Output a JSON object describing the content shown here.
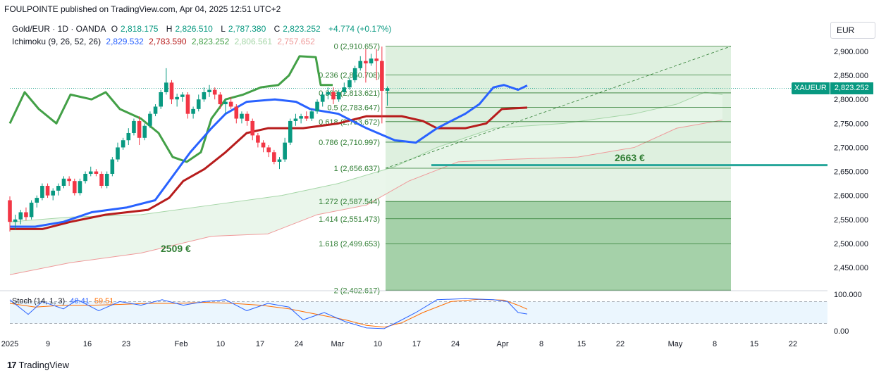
{
  "header": {
    "publisher": "FOULPOINTE published on TradingView.com, Apr 04, 2025 12:51 UTC+2"
  },
  "symbol": {
    "name": "Gold/EUR · 1D · OANDA",
    "o_label": "O",
    "o": "2,818.175",
    "h_label": "H",
    "h": "2,826.510",
    "l_label": "L",
    "l": "2,787.380",
    "c_label": "C",
    "c": "2,823.252",
    "change": "+4.774 (+0.17%)"
  },
  "ichimoku": {
    "label": "Ichimoku (9, 26, 52, 26)",
    "values": [
      "2,829.532",
      "2,783.590",
      "2,823.252",
      "2,806.561",
      "2,757.652"
    ],
    "colors": [
      "#2962ff",
      "#b71c1c",
      "#43a047",
      "#a5d6a7",
      "#ef9a9a"
    ]
  },
  "currency_button": "EUR",
  "price_tag": {
    "symbol": "XAUEUR",
    "value": "2,823.252"
  },
  "annotations": {
    "target_high": "2663 €",
    "target_low": "2509 €"
  },
  "stoch": {
    "label": "Stoch (14, 1, 3)",
    "k": "46.41",
    "d": "59.51",
    "k_color": "#2962ff",
    "d_color": "#ff6d00"
  },
  "branding": {
    "mark": "17",
    "name": "TradingView"
  },
  "colors": {
    "up": "#089981",
    "down": "#f23645",
    "tenkan": "#2962ff",
    "kijun": "#b71c1c",
    "chikou": "#43a047",
    "fib_line": "#2e7d32",
    "cloud": "#e8f5e9",
    "zone": "#c8e6c9",
    "zone_dark": "#8fc694"
  },
  "chart_data": {
    "type": "candlestick",
    "y_axis_ticks": [
      "2,900.000",
      "2,850.000",
      "2,800.000",
      "2,750.000",
      "2,700.000",
      "2,650.000",
      "2,600.000",
      "2,550.000",
      "2,500.000",
      "2,450.000"
    ],
    "y_axis_values": [
      2900,
      2850,
      2800,
      2750,
      2700,
      2650,
      2600,
      2550,
      2500,
      2450
    ],
    "ylim": [
      2414,
      2954
    ],
    "x_axis_ticks": [
      "2025",
      "9",
      "16",
      "23",
      "Feb",
      "10",
      "17",
      "24",
      "Mar",
      "10",
      "17",
      "24",
      "Apr",
      "8",
      "15",
      "22",
      "May",
      "8",
      "15",
      "22"
    ],
    "fib_levels": [
      {
        "label": "0 (2,910.657)",
        "value": 2910.657
      },
      {
        "label": "0.236 (2,850.708)",
        "value": 2850.708
      },
      {
        "label": "0.382 (2,813.621)",
        "value": 2813.621
      },
      {
        "label": "0.5 (2,783.647)",
        "value": 2783.647
      },
      {
        "label": "0.618 (2,753.672)",
        "value": 2753.672
      },
      {
        "label": "0.786 (2,710.997)",
        "value": 2710.997
      },
      {
        "label": "1 (2,656.637)",
        "value": 2656.637
      },
      {
        "label": "1.272 (2,587.544)",
        "value": 2587.544
      },
      {
        "label": "1.414 (2,551.473)",
        "value": 2551.473
      },
      {
        "label": "1.618 (2,499.653)",
        "value": 2499.653
      },
      {
        "label": "2 (2,402.617)",
        "value": 2402.617
      }
    ],
    "horizontal_line": 2663,
    "candles": [
      [
        2590,
        2598,
        2525,
        2545
      ],
      [
        2545,
        2560,
        2528,
        2550
      ],
      [
        2550,
        2570,
        2540,
        2565
      ],
      [
        2565,
        2575,
        2548,
        2555
      ],
      [
        2555,
        2590,
        2550,
        2585
      ],
      [
        2585,
        2600,
        2575,
        2595
      ],
      [
        2595,
        2625,
        2590,
        2620
      ],
      [
        2620,
        2625,
        2595,
        2600
      ],
      [
        2600,
        2615,
        2590,
        2610
      ],
      [
        2610,
        2625,
        2600,
        2620
      ],
      [
        2620,
        2640,
        2615,
        2635
      ],
      [
        2635,
        2640,
        2620,
        2630
      ],
      [
        2630,
        2635,
        2600,
        2605
      ],
      [
        2605,
        2635,
        2600,
        2630
      ],
      [
        2630,
        2650,
        2625,
        2645
      ],
      [
        2645,
        2660,
        2640,
        2650
      ],
      [
        2650,
        2655,
        2640,
        2645
      ],
      [
        2645,
        2650,
        2615,
        2620
      ],
      [
        2620,
        2650,
        2615,
        2645
      ],
      [
        2645,
        2680,
        2640,
        2675
      ],
      [
        2675,
        2710,
        2670,
        2700
      ],
      [
        2700,
        2720,
        2695,
        2715
      ],
      [
        2715,
        2740,
        2705,
        2730
      ],
      [
        2730,
        2760,
        2725,
        2755
      ],
      [
        2755,
        2765,
        2705,
        2720
      ],
      [
        2720,
        2750,
        2715,
        2745
      ],
      [
        2745,
        2775,
        2740,
        2770
      ],
      [
        2770,
        2790,
        2765,
        2785
      ],
      [
        2785,
        2820,
        2780,
        2815
      ],
      [
        2815,
        2865,
        2810,
        2835
      ],
      [
        2835,
        2840,
        2790,
        2800
      ],
      [
        2800,
        2812,
        2785,
        2805
      ],
      [
        2805,
        2815,
        2795,
        2810
      ],
      [
        2810,
        2815,
        2760,
        2770
      ],
      [
        2770,
        2785,
        2760,
        2780
      ],
      [
        2780,
        2810,
        2775,
        2800
      ],
      [
        2800,
        2825,
        2795,
        2815
      ],
      [
        2815,
        2830,
        2805,
        2820
      ],
      [
        2820,
        2825,
        2800,
        2810
      ],
      [
        2810,
        2815,
        2780,
        2790
      ],
      [
        2790,
        2800,
        2770,
        2795
      ],
      [
        2795,
        2805,
        2780,
        2785
      ],
      [
        2785,
        2790,
        2750,
        2760
      ],
      [
        2760,
        2775,
        2750,
        2770
      ],
      [
        2770,
        2775,
        2745,
        2755
      ],
      [
        2755,
        2760,
        2715,
        2725
      ],
      [
        2725,
        2730,
        2700,
        2710
      ],
      [
        2710,
        2715,
        2690,
        2700
      ],
      [
        2700,
        2705,
        2680,
        2690
      ],
      [
        2690,
        2695,
        2665,
        2670
      ],
      [
        2670,
        2680,
        2655,
        2675
      ],
      [
        2675,
        2720,
        2670,
        2710
      ],
      [
        2710,
        2760,
        2705,
        2755
      ],
      [
        2755,
        2770,
        2745,
        2760
      ],
      [
        2760,
        2770,
        2750,
        2765
      ],
      [
        2765,
        2775,
        2755,
        2760
      ],
      [
        2760,
        2780,
        2755,
        2775
      ],
      [
        2775,
        2800,
        2770,
        2795
      ],
      [
        2795,
        2815,
        2785,
        2810
      ],
      [
        2810,
        2825,
        2800,
        2815
      ],
      [
        2815,
        2825,
        2790,
        2800
      ],
      [
        2800,
        2820,
        2795,
        2815
      ],
      [
        2815,
        2835,
        2810,
        2825
      ],
      [
        2825,
        2845,
        2820,
        2840
      ],
      [
        2840,
        2870,
        2835,
        2865
      ],
      [
        2865,
        2890,
        2860,
        2880
      ],
      [
        2880,
        2905,
        2835,
        2875
      ],
      [
        2875,
        2895,
        2870,
        2885
      ],
      [
        2885,
        2905,
        2840,
        2880
      ],
      [
        2880,
        2910,
        2750,
        2818
      ],
      [
        2818,
        2827,
        2787,
        2823
      ]
    ]
  }
}
